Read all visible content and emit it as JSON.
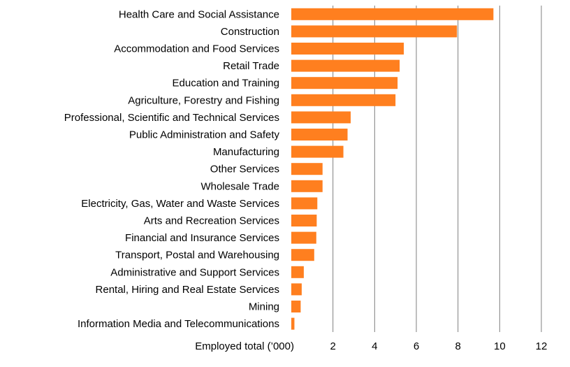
{
  "chart_data": {
    "type": "bar",
    "orientation": "horizontal",
    "title": "",
    "xlabel": "Employed total (’000)",
    "ylabel": "",
    "xlim": [
      0,
      12
    ],
    "xticks": [
      2,
      4,
      6,
      8,
      10,
      12
    ],
    "grid": true,
    "bar_color": "#FF7F1F",
    "grid_color": "#7F7F7F",
    "categories": [
      "Health Care and Social Assistance",
      "Construction",
      "Accommodation and Food Services",
      "Retail Trade",
      "Education and Training",
      "Agriculture, Forestry and Fishing",
      "Professional, Scientific and Technical Services",
      "Public Administration and Safety",
      "Manufacturing",
      "Other Services",
      "Wholesale Trade",
      "Electricity, Gas, Water and Waste Services",
      "Arts and Recreation Services",
      "Financial and Insurance Services",
      "Transport, Postal and Warehousing",
      "Administrative and Support Services",
      "Rental, Hiring and Real Estate Services",
      "Mining",
      "Information Media and Telecommunications"
    ],
    "values": [
      9.7,
      7.95,
      5.4,
      5.2,
      5.1,
      5.0,
      2.85,
      2.7,
      2.5,
      1.5,
      1.5,
      1.25,
      1.22,
      1.2,
      1.1,
      0.6,
      0.5,
      0.45,
      0.15
    ]
  }
}
